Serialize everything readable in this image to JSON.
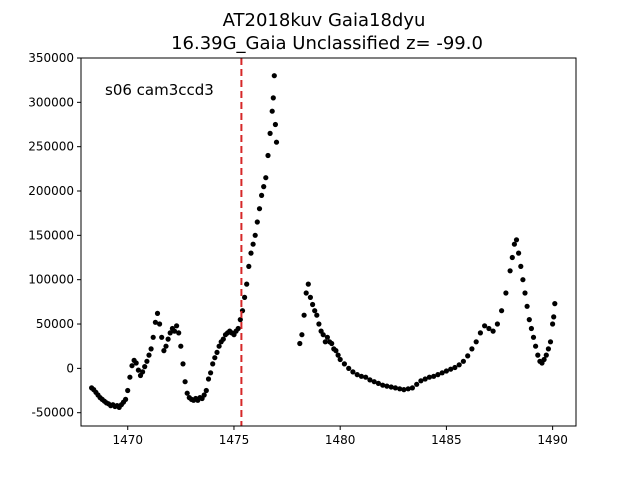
{
  "chart_data": {
    "type": "scatter",
    "title_line1": "AT2018kuv  Gaia18dyu",
    "title_line2": "16.39G_Gaia Unclassified z= -99.0",
    "annotation": "s06 cam3ccd3",
    "xlabel": "",
    "ylabel": "",
    "xlim": [
      1467.8,
      1491.1
    ],
    "ylim": [
      -65000,
      350000
    ],
    "xticks": [
      1470,
      1475,
      1480,
      1485,
      1490
    ],
    "yticks": [
      -50000,
      0,
      50000,
      100000,
      150000,
      200000,
      250000,
      300000,
      350000
    ],
    "grid": false,
    "vline": {
      "x": 1475.35,
      "color": "#d62728",
      "style": "dashed"
    },
    "marker_color": "#000000",
    "series": [
      {
        "points": [
          [
            1468.3,
            -22000
          ],
          [
            1468.4,
            -24000
          ],
          [
            1468.5,
            -27000
          ],
          [
            1468.6,
            -30000
          ],
          [
            1468.7,
            -33000
          ],
          [
            1468.8,
            -35000
          ],
          [
            1468.9,
            -37000
          ],
          [
            1469.0,
            -39000
          ],
          [
            1469.1,
            -40000
          ],
          [
            1469.2,
            -42000
          ],
          [
            1469.3,
            -41000
          ],
          [
            1469.4,
            -43000
          ],
          [
            1469.5,
            -42000
          ],
          [
            1469.6,
            -44000
          ],
          [
            1469.7,
            -41000
          ],
          [
            1469.8,
            -38000
          ],
          [
            1469.9,
            -35000
          ],
          [
            1470.0,
            -25000
          ],
          [
            1470.1,
            -10000
          ],
          [
            1470.2,
            3000
          ],
          [
            1470.3,
            9000
          ],
          [
            1470.4,
            6000
          ],
          [
            1470.5,
            -2000
          ],
          [
            1470.6,
            -8000
          ],
          [
            1470.7,
            -4000
          ],
          [
            1470.8,
            2000
          ],
          [
            1470.9,
            8000
          ],
          [
            1471.0,
            15000
          ],
          [
            1471.1,
            22000
          ],
          [
            1471.2,
            35000
          ],
          [
            1471.3,
            52000
          ],
          [
            1471.4,
            62000
          ],
          [
            1471.5,
            50000
          ],
          [
            1471.6,
            35000
          ],
          [
            1471.7,
            20000
          ],
          [
            1471.8,
            25000
          ],
          [
            1471.9,
            33000
          ],
          [
            1472.0,
            40000
          ],
          [
            1472.1,
            45000
          ],
          [
            1472.2,
            42000
          ],
          [
            1472.3,
            48000
          ],
          [
            1472.4,
            40000
          ],
          [
            1472.5,
            25000
          ],
          [
            1472.6,
            5000
          ],
          [
            1472.7,
            -15000
          ],
          [
            1472.8,
            -28000
          ],
          [
            1472.9,
            -33000
          ],
          [
            1473.0,
            -35000
          ],
          [
            1473.1,
            -36000
          ],
          [
            1473.2,
            -34000
          ],
          [
            1473.3,
            -36000
          ],
          [
            1473.4,
            -33000
          ],
          [
            1473.5,
            -34000
          ],
          [
            1473.6,
            -30000
          ],
          [
            1473.7,
            -25000
          ],
          [
            1473.8,
            -12000
          ],
          [
            1473.9,
            -5000
          ],
          [
            1474.0,
            5000
          ],
          [
            1474.1,
            12000
          ],
          [
            1474.2,
            18000
          ],
          [
            1474.3,
            25000
          ],
          [
            1474.4,
            30000
          ],
          [
            1474.5,
            33000
          ],
          [
            1474.6,
            38000
          ],
          [
            1474.7,
            40000
          ],
          [
            1474.8,
            42000
          ],
          [
            1474.9,
            40000
          ],
          [
            1475.0,
            38000
          ],
          [
            1475.1,
            42000
          ],
          [
            1475.2,
            45000
          ],
          [
            1475.3,
            55000
          ],
          [
            1475.4,
            65000
          ],
          [
            1475.5,
            80000
          ],
          [
            1475.6,
            95000
          ],
          [
            1475.7,
            115000
          ],
          [
            1475.8,
            130000
          ],
          [
            1475.9,
            140000
          ],
          [
            1476.0,
            150000
          ],
          [
            1476.1,
            165000
          ],
          [
            1476.2,
            180000
          ],
          [
            1476.3,
            195000
          ],
          [
            1476.4,
            205000
          ],
          [
            1476.5,
            215000
          ],
          [
            1476.6,
            240000
          ],
          [
            1476.7,
            265000
          ],
          [
            1476.8,
            290000
          ],
          [
            1476.85,
            305000
          ],
          [
            1476.9,
            330000
          ],
          [
            1476.95,
            275000
          ],
          [
            1477.0,
            255000
          ],
          [
            1478.1,
            28000
          ],
          [
            1478.2,
            38000
          ],
          [
            1478.3,
            60000
          ],
          [
            1478.4,
            85000
          ],
          [
            1478.5,
            95000
          ],
          [
            1478.6,
            80000
          ],
          [
            1478.7,
            72000
          ],
          [
            1478.8,
            65000
          ],
          [
            1478.9,
            60000
          ],
          [
            1479.0,
            50000
          ],
          [
            1479.1,
            42000
          ],
          [
            1479.2,
            38000
          ],
          [
            1479.3,
            30000
          ],
          [
            1479.4,
            35000
          ],
          [
            1479.5,
            30000
          ],
          [
            1479.6,
            28000
          ],
          [
            1479.7,
            22000
          ],
          [
            1479.8,
            20000
          ],
          [
            1479.9,
            15000
          ],
          [
            1480.0,
            10000
          ],
          [
            1480.2,
            5000
          ],
          [
            1480.4,
            0
          ],
          [
            1480.6,
            -4000
          ],
          [
            1480.8,
            -7000
          ],
          [
            1481.0,
            -9000
          ],
          [
            1481.2,
            -10000
          ],
          [
            1481.4,
            -13000
          ],
          [
            1481.6,
            -15000
          ],
          [
            1481.8,
            -17000
          ],
          [
            1482.0,
            -19000
          ],
          [
            1482.2,
            -20000
          ],
          [
            1482.4,
            -21000
          ],
          [
            1482.6,
            -22000
          ],
          [
            1482.8,
            -23000
          ],
          [
            1483.0,
            -24000
          ],
          [
            1483.2,
            -23000
          ],
          [
            1483.4,
            -22000
          ],
          [
            1483.6,
            -18000
          ],
          [
            1483.8,
            -14000
          ],
          [
            1484.0,
            -12000
          ],
          [
            1484.2,
            -10000
          ],
          [
            1484.4,
            -9000
          ],
          [
            1484.6,
            -7000
          ],
          [
            1484.8,
            -5000
          ],
          [
            1485.0,
            -3000
          ],
          [
            1485.2,
            -1000
          ],
          [
            1485.4,
            1000
          ],
          [
            1485.6,
            4000
          ],
          [
            1485.8,
            8000
          ],
          [
            1486.0,
            14000
          ],
          [
            1486.2,
            22000
          ],
          [
            1486.4,
            30000
          ],
          [
            1486.6,
            40000
          ],
          [
            1486.8,
            48000
          ],
          [
            1487.0,
            45000
          ],
          [
            1487.2,
            42000
          ],
          [
            1487.4,
            50000
          ],
          [
            1487.6,
            65000
          ],
          [
            1487.8,
            85000
          ],
          [
            1488.0,
            110000
          ],
          [
            1488.1,
            125000
          ],
          [
            1488.2,
            140000
          ],
          [
            1488.3,
            145000
          ],
          [
            1488.4,
            130000
          ],
          [
            1488.5,
            115000
          ],
          [
            1488.6,
            100000
          ],
          [
            1488.7,
            85000
          ],
          [
            1488.8,
            70000
          ],
          [
            1488.9,
            55000
          ],
          [
            1489.0,
            45000
          ],
          [
            1489.1,
            35000
          ],
          [
            1489.2,
            25000
          ],
          [
            1489.3,
            15000
          ],
          [
            1489.4,
            8000
          ],
          [
            1489.5,
            6000
          ],
          [
            1489.6,
            10000
          ],
          [
            1489.7,
            15000
          ],
          [
            1489.8,
            22000
          ],
          [
            1489.9,
            30000
          ],
          [
            1490.0,
            50000
          ],
          [
            1490.05,
            58000
          ],
          [
            1490.1,
            73000
          ]
        ]
      }
    ]
  }
}
